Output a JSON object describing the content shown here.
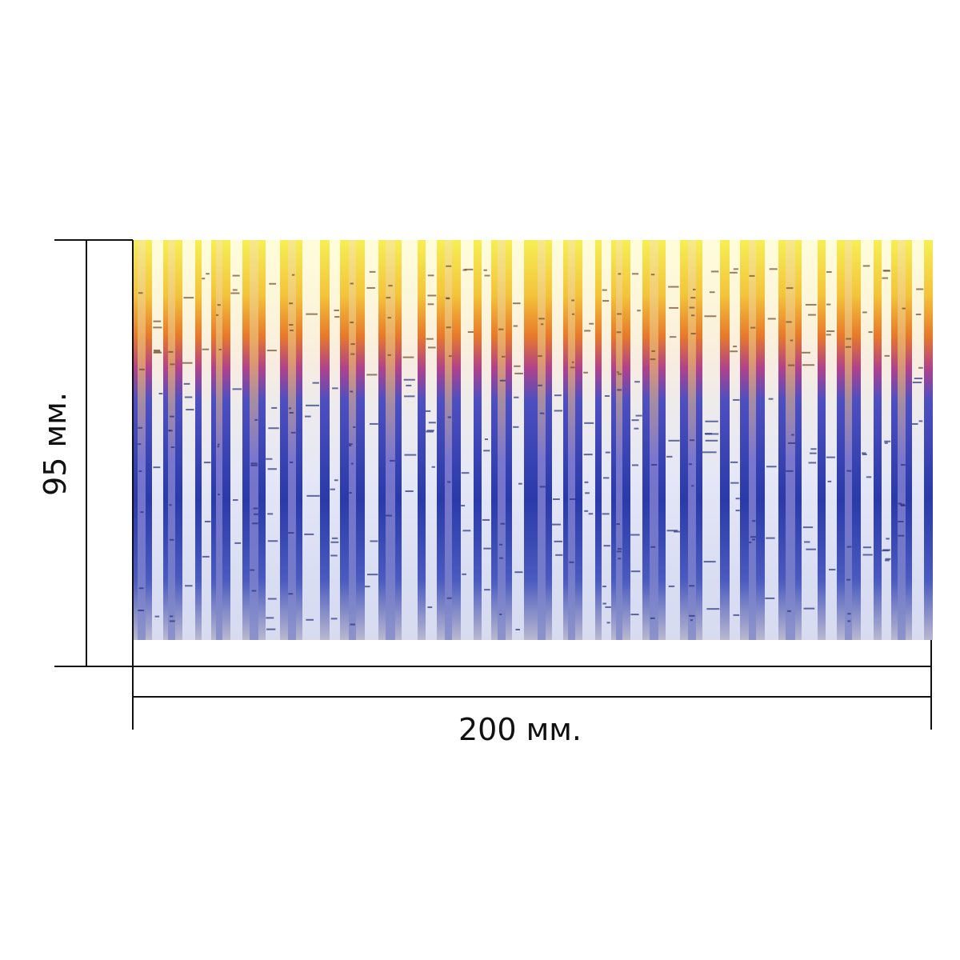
{
  "dimensions": {
    "width_label": "200 мм.",
    "height_label": "95 мм."
  },
  "panel": {
    "motif": "birch-forest",
    "gradient_colors": [
      "#f4ea4a",
      "#f0b230",
      "#e2702a",
      "#8a3fb0",
      "#3b4bb8",
      "#1e2a8a",
      "#c9c7d6"
    ],
    "trunk_color": "#f4f4f2",
    "line_color": "#111111"
  }
}
